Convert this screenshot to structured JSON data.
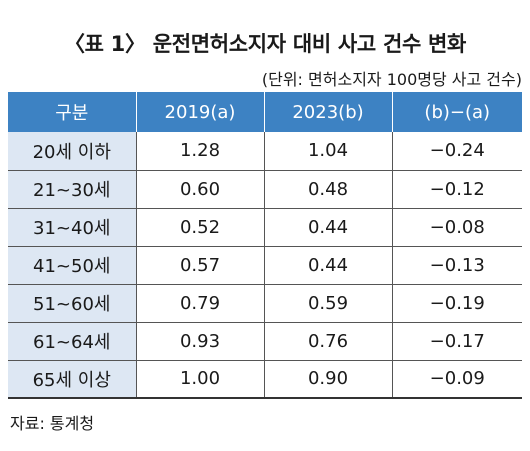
{
  "title": "〈표 1〉 운전면허소지자 대비 사고 건수 변화",
  "unit_note": "(단위: 면허소지자 100명당 사고 건수)",
  "table": {
    "headers": [
      "구분",
      "2019(a)",
      "2023(b)",
      "(b)−(a)"
    ],
    "rows": [
      [
        "20세 이하",
        "1.28",
        "1.04",
        "−0.24"
      ],
      [
        "21~30세",
        "0.60",
        "0.48",
        "−0.12"
      ],
      [
        "31~40세",
        "0.52",
        "0.44",
        "−0.08"
      ],
      [
        "41~50세",
        "0.57",
        "0.44",
        "−0.13"
      ],
      [
        "51~60세",
        "0.79",
        "0.59",
        "−0.19"
      ],
      [
        "61~64세",
        "0.93",
        "0.76",
        "−0.17"
      ],
      [
        "65세 이상",
        "1.00",
        "0.90",
        "−0.09"
      ]
    ]
  },
  "source": "자료: 통계청",
  "colors": {
    "header_bg": "#3d82c3",
    "header_text": "#ffffff",
    "first_column_bg": "#dde7f3"
  }
}
